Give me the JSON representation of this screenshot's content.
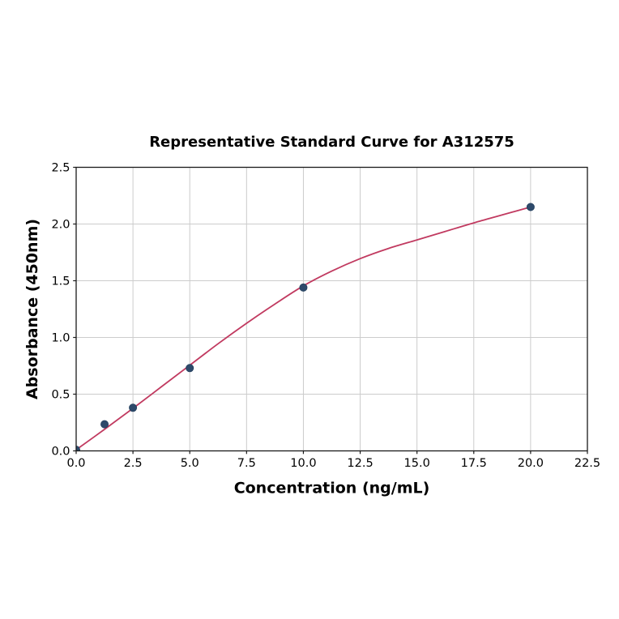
{
  "chart_data": {
    "type": "scatter",
    "title": "Representative Standard Curve for A312575",
    "xlabel": "Concentration (ng/mL)",
    "ylabel": "Absorbance (450nm)",
    "xlim": [
      0,
      22.5
    ],
    "ylim": [
      0,
      2.5
    ],
    "xticks": [
      0,
      2.5,
      5,
      7.5,
      10,
      12.5,
      15,
      17.5,
      20,
      22.5
    ],
    "xtick_labels": [
      "0.0",
      "2.5",
      "5.0",
      "7.5",
      "10.0",
      "12.5",
      "15.0",
      "17.5",
      "20.0",
      "22.5"
    ],
    "yticks": [
      0,
      0.5,
      1,
      1.5,
      2,
      2.5
    ],
    "ytick_labels": [
      "0.0",
      "0.5",
      "1.0",
      "1.5",
      "2.0",
      "2.5"
    ],
    "grid": true,
    "grid_color": "#cccccc",
    "spine_color": "#1a1a1a",
    "background": "#ffffff",
    "series": [
      {
        "name": "standard-points",
        "type": "scatter",
        "marker": "circle",
        "marker_radius": 4.6,
        "color": "#2e4a6b",
        "edge_color": "#24405e",
        "x": [
          0,
          1.25,
          2.5,
          5,
          10,
          20
        ],
        "y": [
          0.01,
          0.235,
          0.38,
          0.73,
          1.44,
          2.15
        ]
      },
      {
        "name": "fit-curve",
        "type": "line",
        "color": "#c13a60",
        "line_width": 1.8,
        "x": [
          0,
          1.25,
          2.5,
          3.75,
          5,
          6.25,
          7.5,
          8.75,
          10,
          11.25,
          12.5,
          13.75,
          15,
          16.25,
          17.5,
          18.75,
          20
        ],
        "y": [
          0.01,
          0.19,
          0.375,
          0.565,
          0.755,
          0.945,
          1.125,
          1.295,
          1.455,
          1.585,
          1.695,
          1.785,
          1.86,
          1.935,
          2.01,
          2.08,
          2.15
        ]
      }
    ]
  }
}
